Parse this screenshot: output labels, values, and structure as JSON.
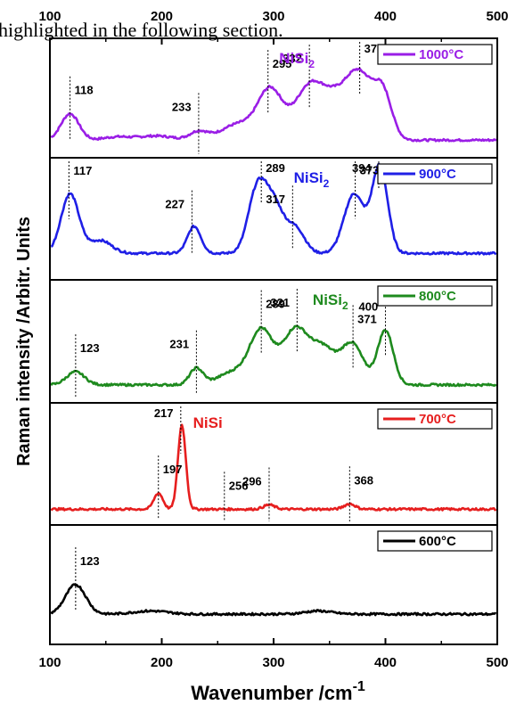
{
  "page": {
    "overlay_text": "highlighted in the following section."
  },
  "chart_data": {
    "type": "line",
    "xlabel": "Wavenumber /cm",
    "xlabel_superscript": "-1",
    "ylabel": "Raman intensity /Arbitr. Units",
    "xlim": [
      100,
      500
    ],
    "xticks": [
      100,
      200,
      300,
      400,
      500
    ],
    "top_ticks_shown": true,
    "grid": false,
    "stacked_panels": true,
    "panels": [
      {
        "legend": "1000°C",
        "color": "#9a1ee6",
        "phase_label": "NiSi",
        "phase_subscript": "2",
        "phase_at": 305,
        "peak_labels": [
          118,
          233,
          295,
          332,
          377
        ],
        "profile": {
          "baseline": 0.1,
          "peaks": [
            {
              "x": 118,
              "h": 0.25,
              "w": 8
            },
            {
              "x": 160,
              "h": 0.03,
              "w": 12
            },
            {
              "x": 195,
              "h": 0.04,
              "w": 15
            },
            {
              "x": 233,
              "h": 0.08,
              "w": 8
            },
            {
              "x": 268,
              "h": 0.15,
              "w": 15
            },
            {
              "x": 297,
              "h": 0.47,
              "w": 11
            },
            {
              "x": 332,
              "h": 0.5,
              "w": 13
            },
            {
              "x": 355,
              "h": 0.3,
              "w": 12
            },
            {
              "x": 377,
              "h": 0.6,
              "w": 12
            },
            {
              "x": 398,
              "h": 0.4,
              "w": 8
            }
          ]
        }
      },
      {
        "legend": "900°C",
        "color": "#1f1fe6",
        "phase_label": "NiSi",
        "phase_subscript": "2",
        "phase_at": 318,
        "peak_labels": [
          117,
          227,
          289,
          317,
          373,
          394
        ],
        "profile": {
          "baseline": 0.18,
          "peaks": [
            {
              "x": 118,
              "h": 0.55,
              "w": 8
            },
            {
              "x": 145,
              "h": 0.12,
              "w": 10
            },
            {
              "x": 229,
              "h": 0.25,
              "w": 6
            },
            {
              "x": 285,
              "h": 0.55,
              "w": 8
            },
            {
              "x": 300,
              "h": 0.45,
              "w": 9
            },
            {
              "x": 320,
              "h": 0.22,
              "w": 8
            },
            {
              "x": 372,
              "h": 0.55,
              "w": 9
            },
            {
              "x": 395,
              "h": 0.8,
              "w": 7
            }
          ]
        }
      },
      {
        "legend": "800°C",
        "color": "#1e8a1e",
        "phase_label": "NiSi",
        "phase_subscript": "2",
        "phase_at": 335,
        "peak_labels": [
          123,
          231,
          289,
          321,
          371,
          400
        ],
        "profile": {
          "baseline": 0.1,
          "peaks": [
            {
              "x": 123,
              "h": 0.12,
              "w": 8
            },
            {
              "x": 231,
              "h": 0.15,
              "w": 6
            },
            {
              "x": 265,
              "h": 0.12,
              "w": 14
            },
            {
              "x": 289,
              "h": 0.48,
              "w": 10
            },
            {
              "x": 320,
              "h": 0.52,
              "w": 12
            },
            {
              "x": 345,
              "h": 0.3,
              "w": 10
            },
            {
              "x": 370,
              "h": 0.38,
              "w": 10
            },
            {
              "x": 400,
              "h": 0.5,
              "w": 7
            }
          ]
        }
      },
      {
        "legend": "700°C",
        "color": "#e61e1e",
        "phase_label": "NiSi",
        "phase_subscript": "",
        "phase_at": 228,
        "peak_labels": [
          197,
          217,
          256,
          296,
          368
        ],
        "profile": {
          "baseline": 0.08,
          "peaks": [
            {
              "x": 197,
              "h": 0.15,
              "w": 4
            },
            {
              "x": 218,
              "h": 0.78,
              "w": 3.5
            },
            {
              "x": 296,
              "h": 0.04,
              "w": 5
            },
            {
              "x": 368,
              "h": 0.05,
              "w": 5
            }
          ]
        }
      },
      {
        "legend": "600°C",
        "color": "#000000",
        "phase_label": "",
        "phase_subscript": "",
        "phase_at": 300,
        "peak_labels": [
          123
        ],
        "profile": {
          "baseline": 0.22,
          "peaks": [
            {
              "x": 123,
              "h": 0.28,
              "w": 9
            },
            {
              "x": 190,
              "h": 0.03,
              "w": 15
            },
            {
              "x": 340,
              "h": 0.03,
              "w": 12
            }
          ]
        }
      }
    ]
  }
}
